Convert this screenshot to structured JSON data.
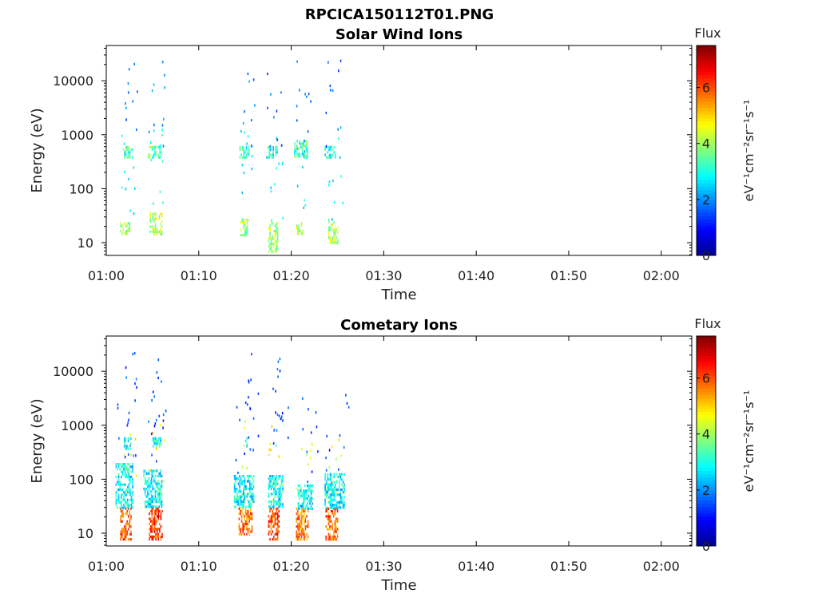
{
  "figure_title": "RPCICA150112T01.PNG",
  "colors": {
    "spectral": [
      "#00008f",
      "#0000ff",
      "#007fff",
      "#00ffff",
      "#7fff7f",
      "#ffff00",
      "#ff7f00",
      "#ff0000",
      "#7f0000"
    ]
  },
  "chart_data": [
    {
      "type": "heatmap",
      "title": "Solar Wind Ions",
      "xlabel": "Time",
      "ylabel": "Energy (eV)",
      "x_ticks": [
        "01:00",
        "01:10",
        "01:20",
        "01:30",
        "01:40",
        "01:50",
        "02:00"
      ],
      "xlim_minutes": [
        0,
        63.3
      ],
      "y_scale": "log",
      "y_ticks": [
        "10",
        "100",
        "1000",
        "10000"
      ],
      "ylim": [
        5.8,
        45000
      ],
      "colorbar": {
        "title": "Flux",
        "label": "eV⁻¹cm⁻²sr⁻¹s⁻¹",
        "ticks": [
          "0",
          "2",
          "4",
          "6"
        ],
        "range": [
          0,
          7.5
        ]
      },
      "grid": false,
      "bursts": [
        {
          "t_min": 1.5,
          "t_max": 2.6,
          "e_min": 14,
          "e_max": 24,
          "flux": 4.0
        },
        {
          "t_min": 1.8,
          "t_max": 2.8,
          "e_min": 380,
          "e_max": 620,
          "flux": 3.2
        },
        {
          "t_min": 4.7,
          "t_max": 6.0,
          "e_min": 14,
          "e_max": 36,
          "flux": 4.2
        },
        {
          "t_min": 4.5,
          "t_max": 6.0,
          "e_min": 380,
          "e_max": 620,
          "flux": 3.5
        },
        {
          "t_min": 14.5,
          "t_max": 15.3,
          "e_min": 14,
          "e_max": 28,
          "flux": 4.0
        },
        {
          "t_min": 14.4,
          "t_max": 15.5,
          "e_min": 380,
          "e_max": 620,
          "flux": 3.2
        },
        {
          "t_min": 17.5,
          "t_max": 18.6,
          "e_min": 6.5,
          "e_max": 24,
          "flux": 4.0
        },
        {
          "t_min": 17.3,
          "t_max": 18.5,
          "e_min": 380,
          "e_max": 620,
          "flux": 3.0
        },
        {
          "t_min": 20.5,
          "t_max": 21.3,
          "e_min": 14,
          "e_max": 24,
          "flux": 4.0
        },
        {
          "t_min": 20.3,
          "t_max": 21.7,
          "e_min": 380,
          "e_max": 800,
          "flux": 3.2
        },
        {
          "t_min": 24.0,
          "t_max": 25.0,
          "e_min": 10,
          "e_max": 28,
          "flux": 4.0
        },
        {
          "t_min": 23.6,
          "t_max": 24.8,
          "e_min": 380,
          "e_max": 620,
          "flux": 3.0
        }
      ]
    },
    {
      "type": "heatmap",
      "title": "Cometary Ions",
      "xlabel": "Time",
      "ylabel": "Energy (eV)",
      "x_ticks": [
        "01:00",
        "01:10",
        "01:20",
        "01:30",
        "01:40",
        "01:50",
        "02:00"
      ],
      "xlim_minutes": [
        0,
        63.3
      ],
      "y_scale": "log",
      "y_ticks": [
        "10",
        "100",
        "1000",
        "10000"
      ],
      "ylim": [
        5.8,
        45000
      ],
      "colorbar": {
        "title": "Flux",
        "label": "eV⁻¹cm⁻²sr⁻¹s⁻¹",
        "ticks": [
          "0",
          "2",
          "4",
          "6"
        ],
        "range": [
          0,
          7.5
        ]
      },
      "grid": false,
      "bursts": [
        {
          "t_min": 1.5,
          "t_max": 2.7,
          "e_min": 8,
          "e_max": 30,
          "flux": 6.0
        },
        {
          "t_min": 1.0,
          "t_max": 2.8,
          "e_min": 30,
          "e_max": 200,
          "flux": 2.8
        },
        {
          "t_min": 1.9,
          "t_max": 2.6,
          "e_min": 380,
          "e_max": 600,
          "flux": 2.8
        },
        {
          "t_min": 4.6,
          "t_max": 6.0,
          "e_min": 8,
          "e_max": 30,
          "flux": 6.2
        },
        {
          "t_min": 4.0,
          "t_max": 6.0,
          "e_min": 30,
          "e_max": 150,
          "flux": 2.8
        },
        {
          "t_min": 5.0,
          "t_max": 5.9,
          "e_min": 420,
          "e_max": 600,
          "flux": 2.8
        },
        {
          "t_min": 14.3,
          "t_max": 15.7,
          "e_min": 10,
          "e_max": 30,
          "flux": 5.8
        },
        {
          "t_min": 13.8,
          "t_max": 15.9,
          "e_min": 30,
          "e_max": 120,
          "flux": 2.8
        },
        {
          "t_min": 15.0,
          "t_max": 15.2,
          "e_min": 400,
          "e_max": 600,
          "flux": 2.8
        },
        {
          "t_min": 17.5,
          "t_max": 18.7,
          "e_min": 8,
          "e_max": 30,
          "flux": 6.0
        },
        {
          "t_min": 17.5,
          "t_max": 19.1,
          "e_min": 30,
          "e_max": 120,
          "flux": 2.8
        },
        {
          "t_min": 18.3,
          "t_max": 18.5,
          "e_min": 420,
          "e_max": 550,
          "flux": 2.8
        },
        {
          "t_min": 20.5,
          "t_max": 21.8,
          "e_min": 8,
          "e_max": 30,
          "flux": 5.6
        },
        {
          "t_min": 20.7,
          "t_max": 22.3,
          "e_min": 30,
          "e_max": 80,
          "flux": 2.8
        },
        {
          "t_min": 23.7,
          "t_max": 25.0,
          "e_min": 8,
          "e_max": 30,
          "flux": 5.8
        },
        {
          "t_min": 23.6,
          "t_max": 25.7,
          "e_min": 30,
          "e_max": 130,
          "flux": 2.8
        }
      ]
    }
  ]
}
